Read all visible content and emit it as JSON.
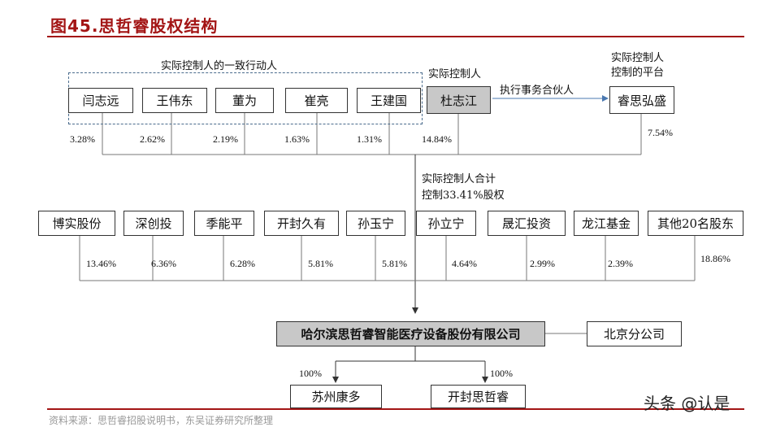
{
  "title": "图45.思哲睿股权结构",
  "labels": {
    "concert_group": "实际控制人的一致行动人",
    "controller": "实际控制人",
    "platform_line1": "实际控制人",
    "platform_line2": "控制的平台",
    "executive_partner": "执行事务合伙人",
    "total_line1": "实际控制人合计",
    "total_line2": "控制33.41%股权"
  },
  "concert_persons": [
    {
      "name": "闫志远",
      "pct": "3.28%"
    },
    {
      "name": "王伟东",
      "pct": "2.62%"
    },
    {
      "name": "董为",
      "pct": "2.19%"
    },
    {
      "name": "崔亮",
      "pct": "1.63%"
    },
    {
      "name": "王建国",
      "pct": "1.31%"
    }
  ],
  "controller": {
    "name": "杜志江",
    "pct": "14.84%"
  },
  "platform": {
    "name": "睿思弘盛",
    "pct": "7.54%"
  },
  "shareholders": [
    {
      "name": "博实股份",
      "pct": "13.46%"
    },
    {
      "name": "深创投",
      "pct": "6.36%"
    },
    {
      "name": "季能平",
      "pct": "6.28%"
    },
    {
      "name": "开封久有",
      "pct": "5.81%"
    },
    {
      "name": "孙玉宁",
      "pct": "5.81%"
    },
    {
      "name": "孙立宁",
      "pct": "4.64%"
    },
    {
      "name": "晟汇投资",
      "pct": "2.99%"
    },
    {
      "name": "龙江基金",
      "pct": "2.39%"
    },
    {
      "name": "其他20名股东",
      "pct": "18.86%"
    }
  ],
  "company": {
    "name": "哈尔滨思哲睿智能医疗设备股份有限公司"
  },
  "branch": {
    "name": "北京分公司"
  },
  "subsidiaries": [
    {
      "name": "苏州康多",
      "pct": "100%"
    },
    {
      "name": "开封思哲睿",
      "pct": "100%"
    }
  ],
  "watermark": "头条 @认是",
  "footer": "资料来源：思哲睿招股说明书，东吴证券研究所整理"
}
